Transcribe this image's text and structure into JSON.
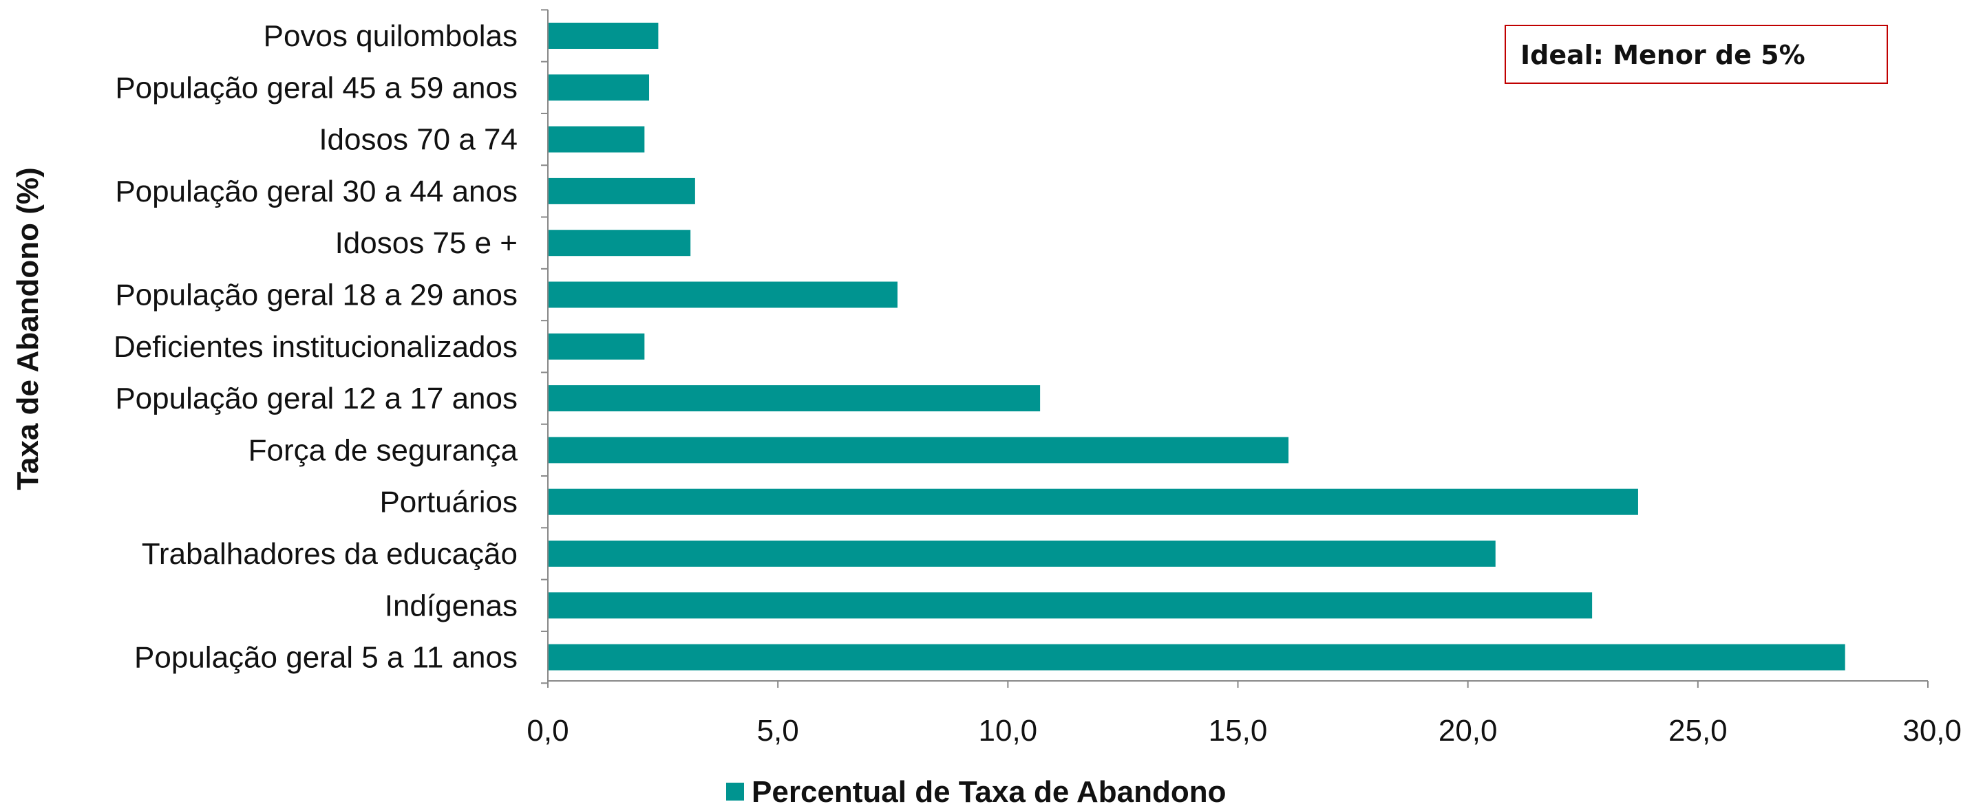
{
  "chart_data": {
    "type": "bar",
    "orientation": "horizontal",
    "categories": [
      "Povos quilombolas",
      "População geral 45 a 59 anos",
      "Idosos 70 a 74",
      "População geral 30 a 44 anos",
      "Idosos 75 e +",
      "População geral 18 a 29 anos",
      "Deficientes institucionalizados",
      "População geral 12 a 17 anos",
      "Força de segurança",
      "Portuários",
      "Trabalhadores da educação",
      "Indígenas",
      "População geral 5 a 11 anos"
    ],
    "series": [
      {
        "name": "Percentual de Taxa de Abandono",
        "color": "#009490",
        "values": [
          2.4,
          2.2,
          2.1,
          3.2,
          3.1,
          7.6,
          2.1,
          10.7,
          16.1,
          23.7,
          20.6,
          22.7,
          28.2
        ]
      }
    ],
    "ylabel": "Taxa de Abandono (%)",
    "xlim": [
      0,
      30
    ],
    "xticks": [
      0,
      5,
      10,
      15,
      20,
      25,
      30
    ],
    "xtick_labels": [
      "0,0",
      "5,0",
      "10,0",
      "15,0",
      "20,0",
      "25,0",
      "30,0"
    ],
    "grid": false,
    "legend_position": "bottom",
    "annotation": "Ideal: Menor de 5%",
    "annotation_border_color": "#c00000"
  }
}
